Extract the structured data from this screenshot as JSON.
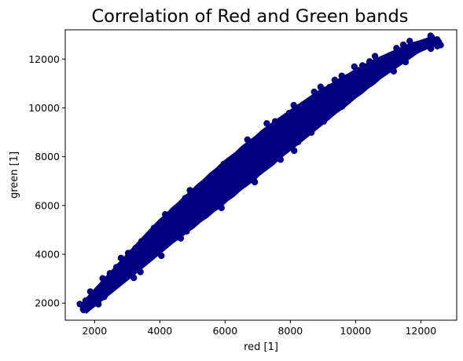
{
  "chart_data": {
    "type": "scatter",
    "title": "Correlation of Red and Green bands",
    "xlabel": "red [1]",
    "ylabel": "green [1]",
    "xlim": [
      1100,
      13100
    ],
    "ylim": [
      1300,
      13200
    ],
    "xticks": [
      2000,
      4000,
      6000,
      8000,
      10000,
      12000
    ],
    "yticks": [
      2000,
      4000,
      6000,
      8000,
      10000,
      12000
    ],
    "grid": false,
    "color": "#000080",
    "series": [
      {
        "points_x": [
          1650,
          1800,
          2000,
          2200,
          2400,
          2600,
          2800,
          3000,
          3200,
          3400,
          3600,
          3800,
          4000,
          4200,
          4400,
          4600,
          4800,
          5000,
          5200,
          5400,
          5600,
          5800,
          6000,
          6200,
          6400,
          6600,
          6800,
          7000,
          7200,
          7400,
          7600,
          7800,
          8000,
          8200,
          8400,
          8600,
          8800,
          9000,
          9200,
          9400,
          9600,
          9800,
          10000,
          10200,
          10400,
          10600,
          10800,
          11000,
          11200,
          11400,
          11600,
          11800,
          12000,
          12200,
          12400,
          12500
        ],
        "points_y": [
          1750,
          1950,
          2200,
          2450,
          2700,
          2950,
          3200,
          3450,
          3700,
          3950,
          4200,
          4450,
          4700,
          4950,
          5150,
          5400,
          5600,
          5850,
          6050,
          6300,
          6500,
          6750,
          6950,
          7200,
          7400,
          7600,
          7850,
          8050,
          8250,
          8500,
          8700,
          8900,
          9100,
          9300,
          9500,
          9700,
          9900,
          10100,
          10300,
          10450,
          10650,
          10850,
          11000,
          11200,
          11350,
          11550,
          11700,
          11850,
          12000,
          12150,
          12300,
          12450,
          12550,
          12650,
          12750,
          12800
        ]
      }
    ]
  }
}
